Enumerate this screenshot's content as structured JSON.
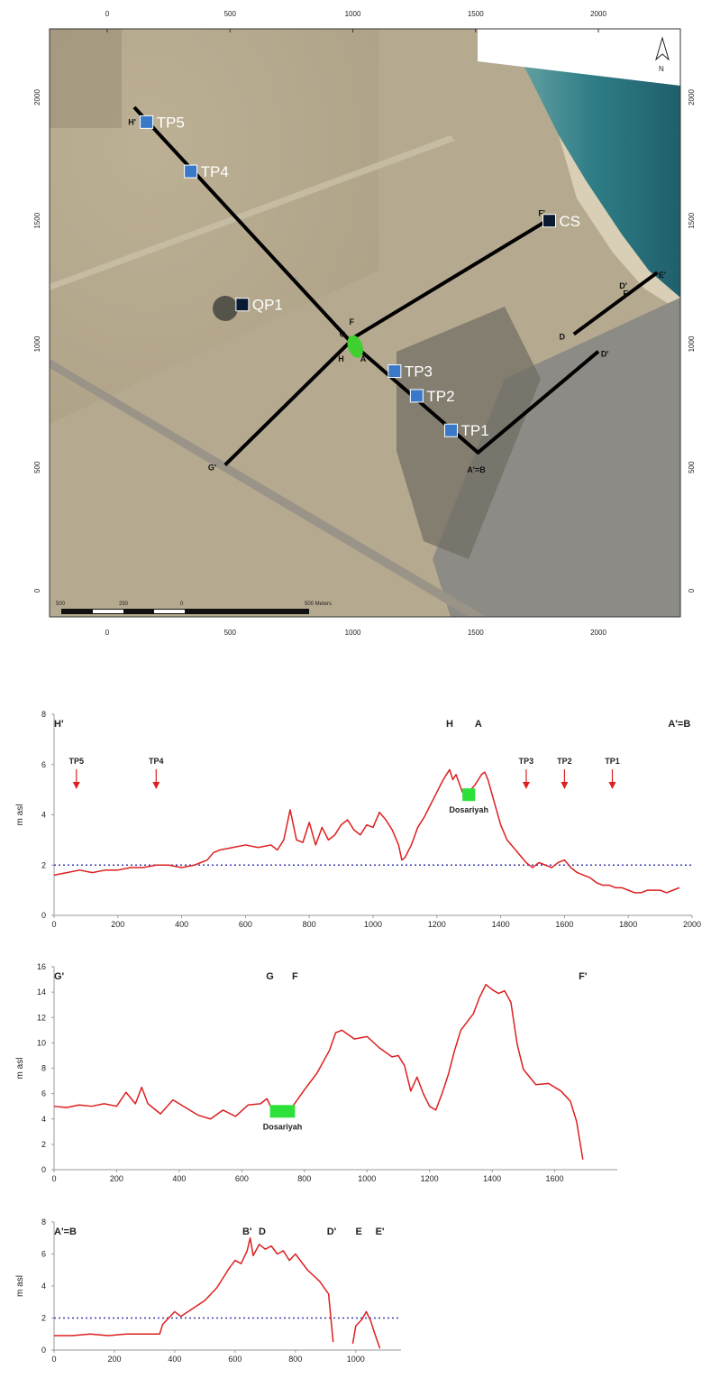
{
  "map": {
    "x_ticks": [
      "0",
      "500",
      "1000",
      "1500",
      "2000"
    ],
    "y_ticks": [
      "0",
      "500",
      "1000",
      "1500",
      "2000"
    ],
    "scale_labels": [
      "500",
      "250",
      "0",
      "500 Meters"
    ],
    "north_label": "N",
    "markers": [
      {
        "name": "TP5",
        "x": 160,
        "y": 1900,
        "color": "#3a78c8"
      },
      {
        "name": "TP4",
        "x": 340,
        "y": 1700,
        "color": "#3a78c8"
      },
      {
        "name": "QP1",
        "x": 550,
        "y": 1160,
        "color": "#0b1a33"
      },
      {
        "name": "TP3",
        "x": 1170,
        "y": 890,
        "color": "#3a78c8"
      },
      {
        "name": "TP2",
        "x": 1260,
        "y": 790,
        "color": "#3a78c8"
      },
      {
        "name": "TP1",
        "x": 1400,
        "y": 650,
        "color": "#3a78c8"
      },
      {
        "name": "CS",
        "x": 1800,
        "y": 1500,
        "color": "#0b1a33"
      }
    ],
    "point_labels": [
      {
        "t": "H'",
        "x": 100,
        "y": 1900
      },
      {
        "t": "G",
        "x": 960,
        "y": 1040
      },
      {
        "t": "F",
        "x": 1000,
        "y": 1090
      },
      {
        "t": "H",
        "x": 955,
        "y": 940
      },
      {
        "t": "A",
        "x": 1045,
        "y": 940
      },
      {
        "t": "F'",
        "x": 1770,
        "y": 1530
      },
      {
        "t": "G'",
        "x": 425,
        "y": 500
      },
      {
        "t": "A'=B",
        "x": 1480,
        "y": 490
      },
      {
        "t": "D",
        "x": 1855,
        "y": 1030
      },
      {
        "t": "D'",
        "x": 2025,
        "y": 960
      },
      {
        "t": "D'",
        "x": 2100,
        "y": 1235
      },
      {
        "t": "E",
        "x": 2115,
        "y": 1205
      },
      {
        "t": "E'",
        "x": 2260,
        "y": 1280
      }
    ],
    "lines": [
      [
        [
          110,
          1960
        ],
        [
          1000,
          1000
        ],
        [
          1510,
          560
        ],
        [
          2000,
          970
        ]
      ],
      [
        [
          480,
          510
        ],
        [
          1010,
          1030
        ],
        [
          1790,
          1500
        ]
      ],
      [
        [
          1900,
          1040
        ],
        [
          2240,
          1290
        ]
      ]
    ]
  },
  "chart_data": [
    {
      "type": "line",
      "xlabel": "",
      "ylabel": "m asl",
      "xlim": [
        0,
        2000
      ],
      "ylim": [
        0,
        8
      ],
      "x_ticks": [
        0,
        200,
        400,
        600,
        800,
        1000,
        1200,
        1400,
        1600,
        1800,
        2000
      ],
      "y_ticks": [
        0,
        2,
        4,
        6,
        8
      ],
      "reference_line": 2,
      "section_labels": [
        {
          "text": "H'",
          "x": 0
        },
        {
          "text": "H",
          "x": 1240
        },
        {
          "text": "A",
          "x": 1330
        },
        {
          "text": "A'=B",
          "x": 1960
        }
      ],
      "arrows": [
        {
          "label": "TP5",
          "x": 70
        },
        {
          "label": "TP4",
          "x": 320
        },
        {
          "label": "TP3",
          "x": 1480
        },
        {
          "label": "TP2",
          "x": 1600
        },
        {
          "label": "TP1",
          "x": 1750
        }
      ],
      "patch": {
        "label": "Dosariyah",
        "x0": 1280,
        "x1": 1320,
        "y": 4.8
      },
      "x": [
        0,
        40,
        80,
        120,
        160,
        200,
        240,
        280,
        320,
        360,
        400,
        440,
        480,
        500,
        520,
        560,
        600,
        640,
        680,
        700,
        720,
        740,
        760,
        780,
        800,
        820,
        840,
        860,
        880,
        900,
        920,
        940,
        960,
        980,
        1000,
        1020,
        1040,
        1060,
        1080,
        1090,
        1100,
        1120,
        1140,
        1160,
        1180,
        1200,
        1220,
        1240,
        1250,
        1260,
        1280,
        1300,
        1320,
        1340,
        1350,
        1360,
        1380,
        1400,
        1420,
        1440,
        1460,
        1480,
        1500,
        1520,
        1540,
        1560,
        1580,
        1600,
        1620,
        1640,
        1660,
        1680,
        1700,
        1720,
        1740,
        1760,
        1780,
        1800,
        1820,
        1840,
        1860,
        1880,
        1900,
        1920,
        1940,
        1960
      ],
      "y": [
        1.6,
        1.7,
        1.8,
        1.7,
        1.8,
        1.8,
        1.9,
        1.9,
        2.0,
        2.0,
        1.9,
        2.0,
        2.2,
        2.5,
        2.6,
        2.7,
        2.8,
        2.7,
        2.8,
        2.6,
        3.0,
        4.2,
        3.0,
        2.9,
        3.7,
        2.8,
        3.5,
        3.0,
        3.2,
        3.6,
        3.8,
        3.4,
        3.2,
        3.6,
        3.5,
        4.1,
        3.8,
        3.4,
        2.8,
        2.2,
        2.3,
        2.8,
        3.5,
        3.9,
        4.4,
        4.9,
        5.4,
        5.8,
        5.4,
        5.6,
        4.9,
        4.9,
        5.2,
        5.6,
        5.7,
        5.4,
        4.5,
        3.6,
        3.0,
        2.7,
        2.4,
        2.1,
        1.9,
        2.1,
        2.0,
        1.9,
        2.1,
        2.2,
        1.9,
        1.7,
        1.6,
        1.5,
        1.3,
        1.2,
        1.2,
        1.1,
        1.1,
        1.0,
        0.9,
        0.9,
        1.0,
        1.0,
        1.0,
        0.9,
        1.0,
        1.1
      ]
    },
    {
      "type": "line",
      "xlabel": "",
      "ylabel": "m asl",
      "xlim": [
        0,
        1800
      ],
      "ylim": [
        0,
        16
      ],
      "x_ticks": [
        0,
        200,
        400,
        600,
        800,
        1000,
        1200,
        1400,
        1600
      ],
      "y_ticks": [
        0,
        2,
        4,
        6,
        8,
        10,
        12,
        14,
        16
      ],
      "section_labels": [
        {
          "text": "G'",
          "x": 0
        },
        {
          "text": "G",
          "x": 690
        },
        {
          "text": "F",
          "x": 770
        },
        {
          "text": "F'",
          "x": 1690
        }
      ],
      "patch": {
        "label": "Dosariyah",
        "x0": 690,
        "x1": 770,
        "y": 4.6
      },
      "x": [
        0,
        40,
        80,
        120,
        160,
        200,
        230,
        260,
        280,
        300,
        340,
        380,
        420,
        460,
        500,
        540,
        580,
        620,
        660,
        680,
        700,
        720,
        760,
        800,
        840,
        880,
        900,
        920,
        960,
        1000,
        1040,
        1080,
        1100,
        1120,
        1140,
        1160,
        1180,
        1200,
        1220,
        1240,
        1260,
        1280,
        1300,
        1340,
        1360,
        1380,
        1400,
        1420,
        1440,
        1460,
        1480,
        1500,
        1540,
        1580,
        1620,
        1650,
        1670,
        1690
      ],
      "y": [
        5.0,
        4.9,
        5.1,
        5.0,
        5.2,
        5.0,
        6.1,
        5.2,
        6.5,
        5.2,
        4.4,
        5.5,
        4.9,
        4.3,
        4.0,
        4.7,
        4.2,
        5.1,
        5.2,
        5.6,
        4.6,
        4.3,
        4.9,
        6.3,
        7.6,
        9.4,
        10.8,
        11.0,
        10.3,
        10.5,
        9.6,
        8.9,
        9.0,
        8.2,
        6.2,
        7.3,
        6.0,
        5.0,
        4.7,
        6.0,
        7.5,
        9.4,
        11.0,
        12.3,
        13.6,
        14.6,
        14.2,
        13.9,
        14.1,
        13.2,
        9.9,
        7.9,
        6.7,
        6.8,
        6.2,
        5.4,
        3.8,
        0.8
      ]
    },
    {
      "type": "line",
      "xlabel": "",
      "ylabel": "m asl",
      "xlim": [
        0,
        1150
      ],
      "ylim": [
        0,
        8
      ],
      "x_ticks": [
        0,
        200,
        400,
        600,
        800,
        1000
      ],
      "y_ticks": [
        0,
        2,
        4,
        6,
        8
      ],
      "reference_line": 2,
      "section_labels": [
        {
          "text": "A'=B",
          "x": 0
        },
        {
          "text": "B'",
          "x": 640
        },
        {
          "text": "D",
          "x": 690
        },
        {
          "text": "D'",
          "x": 920
        },
        {
          "text": "E",
          "x": 1010
        },
        {
          "text": "E'",
          "x": 1080
        }
      ],
      "series": [
        {
          "x": [
            0,
            60,
            120,
            180,
            240,
            300,
            350,
            360,
            380,
            400,
            420,
            460,
            500,
            540,
            580,
            600,
            620,
            640,
            650,
            660,
            680,
            700,
            720,
            740,
            760,
            780,
            800,
            840,
            880,
            910,
            925
          ],
          "y": [
            0.9,
            0.9,
            1.0,
            0.9,
            1.0,
            1.0,
            1.0,
            1.6,
            2.0,
            2.4,
            2.1,
            2.6,
            3.1,
            3.9,
            5.1,
            5.6,
            5.4,
            6.2,
            7.0,
            5.9,
            6.6,
            6.3,
            6.5,
            6.0,
            6.2,
            5.6,
            6.0,
            5.0,
            4.3,
            3.5,
            0.5
          ]
        },
        {
          "x": [
            990,
            1000,
            1020,
            1035,
            1050,
            1060,
            1080
          ],
          "y": [
            0.4,
            1.5,
            1.9,
            2.4,
            1.8,
            1.2,
            0.1
          ]
        }
      ]
    }
  ]
}
